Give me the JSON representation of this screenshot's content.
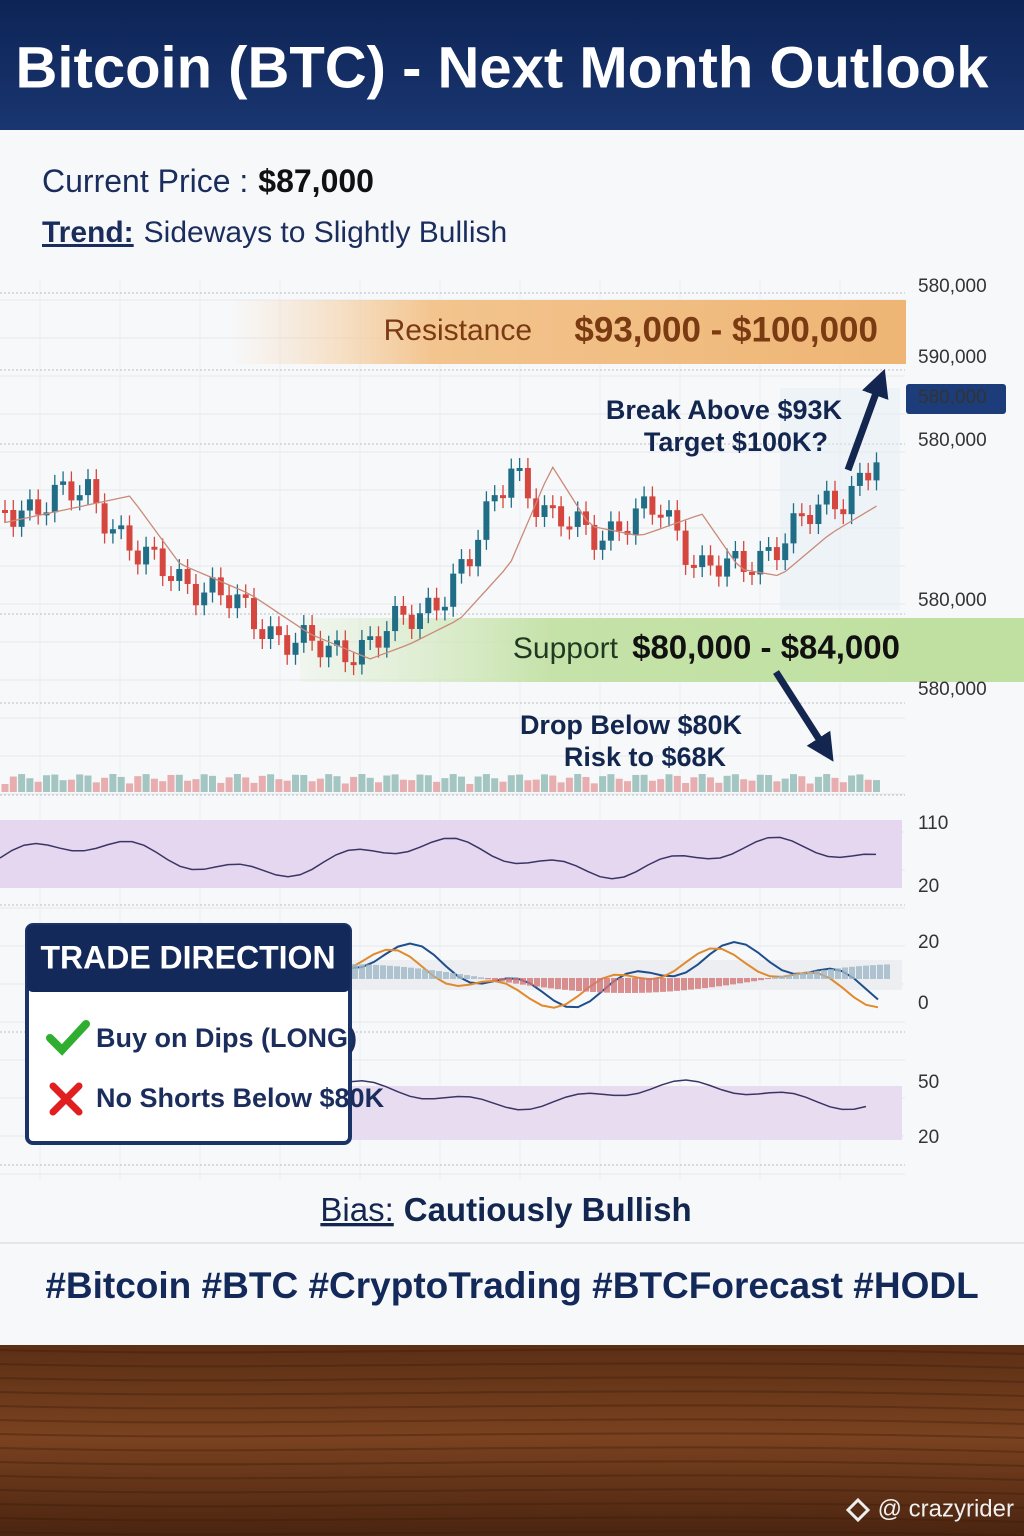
{
  "header": {
    "title": "Bitcoin (BTC) - Next Month Outlook"
  },
  "summary": {
    "price_label": "Current Price :",
    "price": "$87,000",
    "trend_label": "Trend:",
    "trend": "Sideways to Slightly Bullish"
  },
  "chart": {
    "axis_labels": [
      "580,000",
      "590,000",
      "580,000",
      "580,000",
      "580,000",
      "580,000"
    ],
    "resistance": {
      "label": "Resistance",
      "range": "$93,000 - $100,000"
    },
    "breakout_note": [
      "Break Above $93K",
      "Target $100K?"
    ],
    "support": {
      "label": "Support",
      "range": "$80,000 - $84,000"
    },
    "breakdown_note": [
      "Drop Below $80K",
      "Risk to $68K"
    ],
    "indicator_axes": [
      [
        "110",
        "20"
      ],
      [
        "20",
        "0"
      ],
      [
        "50",
        "20"
      ]
    ]
  },
  "trade_direction": {
    "title": "TRADE DIRECTION",
    "items": [
      "Buy on Dips (LONG)",
      "No Shorts Below $80K"
    ]
  },
  "bias": {
    "label": "Bias:",
    "value": "Cautiously Bullish"
  },
  "hashtags": "#Bitcoin #BTC #CryptoTrading #BTCForecast #HODL",
  "watermark": "@ crazyrider"
}
